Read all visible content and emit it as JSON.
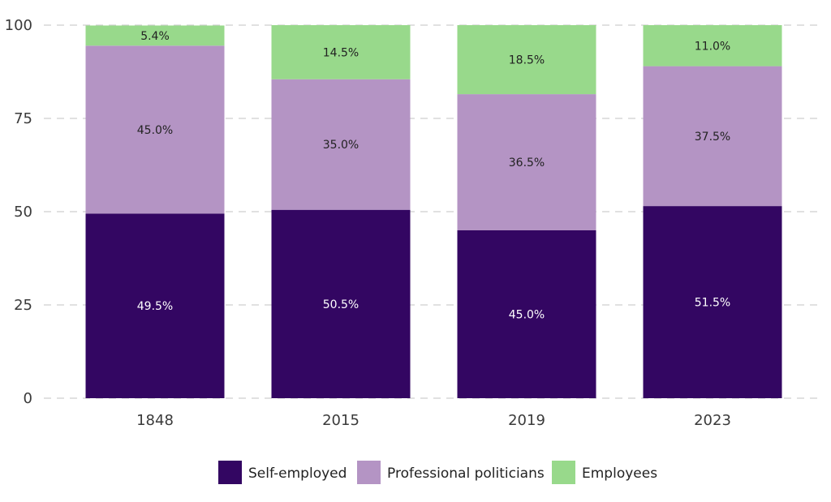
{
  "chart_data": {
    "type": "bar",
    "stacked": true,
    "categories": [
      "1848",
      "2015",
      "2019",
      "2023"
    ],
    "series": [
      {
        "name": "Self-employed",
        "values": [
          49.5,
          50.5,
          45.0,
          51.5
        ],
        "labels": [
          "49.5%",
          "50.5%",
          "45.0%",
          "51.5%"
        ],
        "color": "#330662",
        "label_color": "#ffffff"
      },
      {
        "name": "Professional politicians",
        "values": [
          45.0,
          35.0,
          36.5,
          37.5
        ],
        "labels": [
          "45.0%",
          "35.0%",
          "36.5%",
          "37.5%"
        ],
        "color": "#b494c4",
        "label_color": "#222222"
      },
      {
        "name": "Employees",
        "values": [
          5.4,
          14.5,
          18.5,
          11.0
        ],
        "labels": [
          "5.4%",
          "14.5%",
          "18.5%",
          "11.0%"
        ],
        "color": "#98d98b",
        "label_color": "#222222"
      }
    ],
    "ylim": [
      0,
      100
    ],
    "yticks": [
      "0",
      "25",
      "50",
      "75",
      "100"
    ],
    "grid": true,
    "legend_position": "bottom-center",
    "title": "",
    "xlabel": "",
    "ylabel": ""
  }
}
